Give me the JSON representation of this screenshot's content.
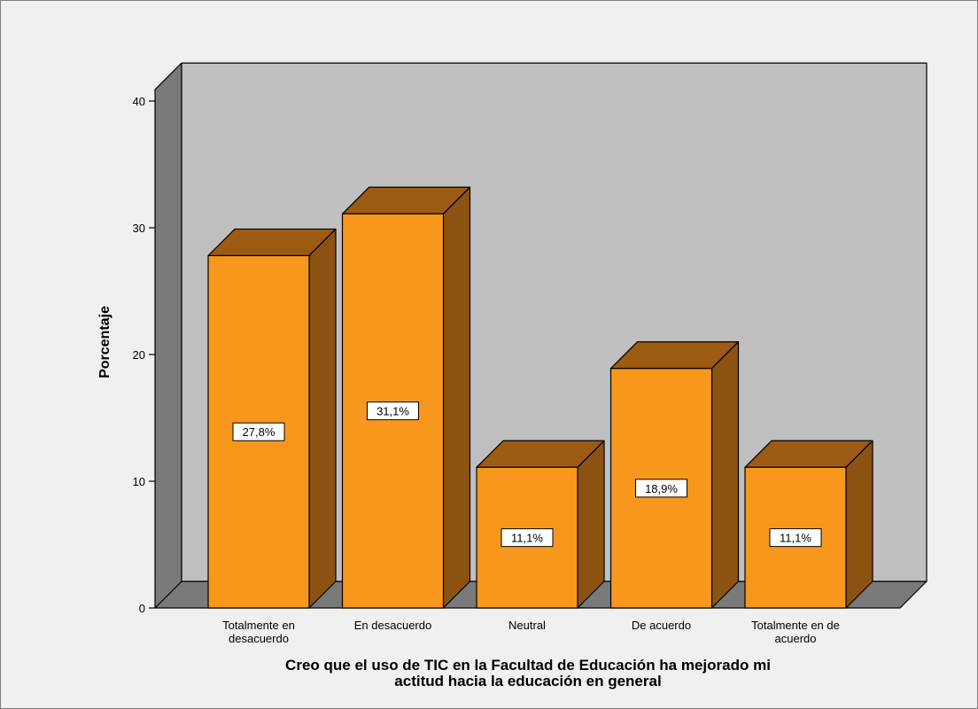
{
  "chart_data": {
    "type": "bar",
    "style": "3d",
    "categories": [
      "Totalmente en desacuerdo",
      "En desacuerdo",
      "Neutral",
      "De acuerdo",
      "Totalmente en de acuerdo"
    ],
    "category_lines": [
      [
        "Totalmente en",
        "desacuerdo"
      ],
      [
        "En desacuerdo"
      ],
      [
        "Neutral"
      ],
      [
        "De acuerdo"
      ],
      [
        "Totalmente en de",
        "acuerdo"
      ]
    ],
    "values": [
      27.8,
      31.1,
      11.1,
      18.9,
      11.1
    ],
    "data_labels": [
      "27,8%",
      "31,1%",
      "11,1%",
      "18,9%",
      "11,1%"
    ],
    "ylabel": "Porcentaje",
    "xlabel_lines": [
      "Creo que el uso de TIC en la Facultad de Educación ha mejorado mi",
      "actitud hacia la educación en general"
    ],
    "ylim": [
      0,
      43
    ],
    "yticks": [
      0,
      10,
      20,
      30,
      40
    ],
    "grid": false,
    "legend": "none",
    "colors": {
      "bar_front": "#f7981d",
      "bar_top": "#9c5a12",
      "bar_side": "#8c5212",
      "back_wall": "#c0c0c0",
      "side_wall": "#7a7a7a",
      "floor": "#7a7a7a",
      "background": "#f0f0f0"
    }
  }
}
